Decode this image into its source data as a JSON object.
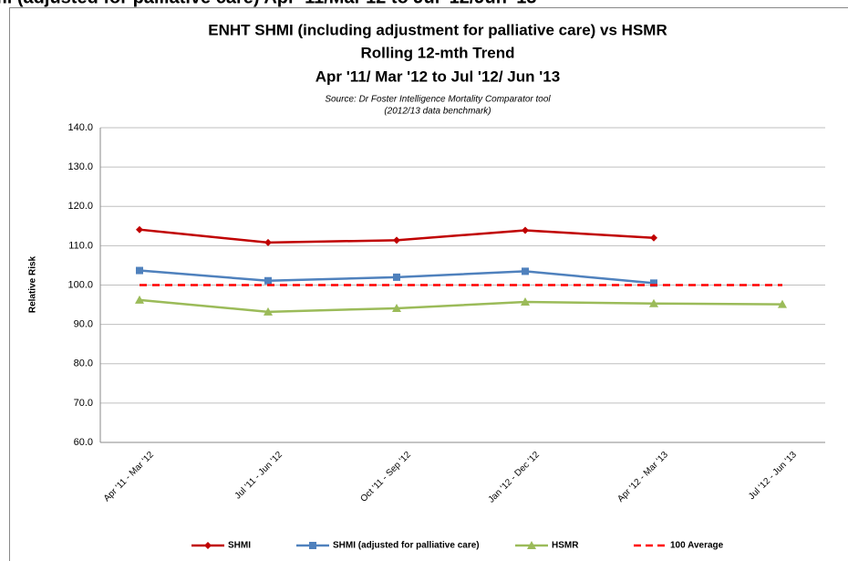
{
  "header": {
    "title": "mi (adjusted for palliative care) Apr '11/Mar'12 to Jul '12/Jun '13"
  },
  "chart_data": {
    "type": "line",
    "title": [
      "ENHT SHMI (including adjustment for palliative care) vs HSMR",
      "Rolling 12-mth Trend",
      "Apr '11/ Mar '12 to Jul '12/ Jun '13"
    ],
    "subtitle": [
      "Source: Dr Foster Intelligence Mortality Comparator tool",
      "(2012/13 data benchmark)"
    ],
    "y_label": "Relative Risk",
    "categories": [
      "Apr '11 - Mar '12",
      "Jul '11 - Jun '12",
      "Oct '11 - Sep '12",
      "Jan '12 - Dec '12",
      "Apr '12 - Mar '13",
      "Jul '12 - Jun '13"
    ],
    "series": [
      {
        "name": "SHMI",
        "color": "#c00000",
        "marker": "diamond",
        "values": [
          114.1,
          110.8,
          111.4,
          113.9,
          112.0,
          null
        ]
      },
      {
        "name": "SHMI (adjusted for palliative care)",
        "color": "#4f81bd",
        "marker": "square",
        "values": [
          103.7,
          101.1,
          102.0,
          103.5,
          100.5,
          null
        ]
      },
      {
        "name": "HSMR",
        "color": "#9bbb59",
        "marker": "triangle",
        "values": [
          96.2,
          93.2,
          94.1,
          95.7,
          95.3,
          95.1
        ]
      },
      {
        "name": "100 Average",
        "color": "#ff0000",
        "marker": "none",
        "dashed": true,
        "values": [
          100,
          100,
          100,
          100,
          100,
          100
        ]
      }
    ],
    "ylim": [
      60,
      140
    ],
    "yticks": [
      {
        "value": 60,
        "label": "60.0"
      },
      {
        "value": 70,
        "label": "70.0"
      },
      {
        "value": 80,
        "label": "80.0"
      },
      {
        "value": 90,
        "label": "90.0"
      },
      {
        "value": 100,
        "label": "100.0"
      },
      {
        "value": 110,
        "label": "110.0"
      },
      {
        "value": 120,
        "label": "120.0"
      },
      {
        "value": 130,
        "label": "130.0"
      },
      {
        "value": 140,
        "label": "140.0"
      }
    ],
    "grid": true,
    "legend": "bottom"
  }
}
